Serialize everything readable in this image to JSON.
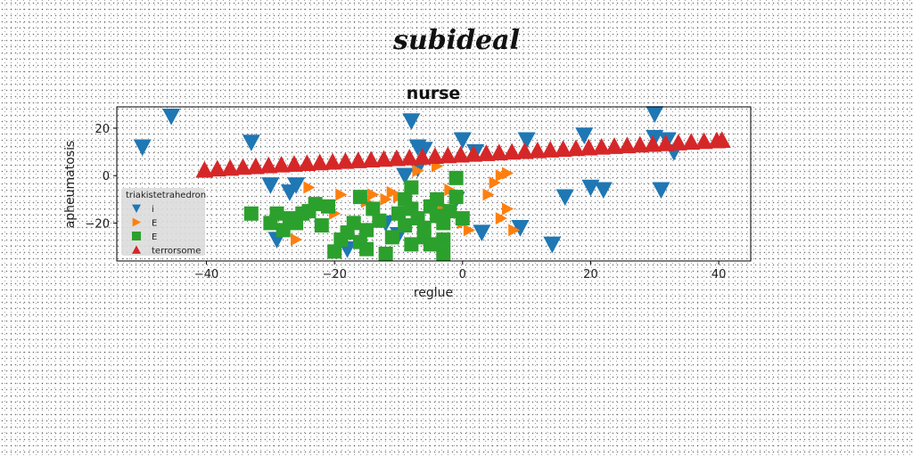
{
  "suptitle": "subideal",
  "chart_data": {
    "type": "scatter",
    "title": "nurse",
    "xlabel": "reglue",
    "ylabel": "apheumatosis",
    "xlim": [
      -54,
      45
    ],
    "ylim": [
      -36,
      29
    ],
    "xticks": [
      -40,
      -20,
      0,
      20,
      40
    ],
    "yticks": [
      20,
      0,
      -20
    ],
    "grid": false,
    "legend": {
      "title": "triakistetrahedron",
      "placement": "lower-left"
    },
    "series": [
      {
        "name": "i",
        "marker": "triangle-down",
        "color": "#1f77b4",
        "points": [
          [
            -45.5,
            25
          ],
          [
            -50,
            12
          ],
          [
            -33,
            14
          ],
          [
            -30,
            -4
          ],
          [
            -26,
            -4
          ],
          [
            -27,
            -7
          ],
          [
            -29,
            -27
          ],
          [
            -18,
            -31
          ],
          [
            -8,
            23
          ],
          [
            -7,
            12
          ],
          [
            -6,
            11
          ],
          [
            -7,
            3
          ],
          [
            -9,
            0
          ],
          [
            -12,
            -20
          ],
          [
            -10,
            -25
          ],
          [
            0,
            15
          ],
          [
            -1,
            -10
          ],
          [
            2,
            10
          ],
          [
            3,
            -24
          ],
          [
            9,
            -22
          ],
          [
            10,
            15
          ],
          [
            14,
            -29
          ],
          [
            16,
            -9
          ],
          [
            19,
            17
          ],
          [
            20,
            -5
          ],
          [
            22,
            -6
          ],
          [
            30,
            26
          ],
          [
            30,
            16
          ],
          [
            31,
            -6
          ],
          [
            32,
            15
          ],
          [
            33,
            10
          ]
        ]
      },
      {
        "name": "E",
        "marker": "triangle-right",
        "color": "#ff7f0e",
        "points": [
          [
            -26,
            -27
          ],
          [
            -24,
            -5
          ],
          [
            -20,
            -16
          ],
          [
            -19,
            -8
          ],
          [
            -19,
            -28
          ],
          [
            -15,
            -11
          ],
          [
            -14,
            -8
          ],
          [
            -12,
            -10
          ],
          [
            -11,
            -7
          ],
          [
            -10,
            -9
          ],
          [
            -8,
            -12
          ],
          [
            -7,
            2
          ],
          [
            -6,
            -26
          ],
          [
            -4,
            4
          ],
          [
            -3,
            -13
          ],
          [
            -2,
            -6
          ],
          [
            0,
            -20
          ],
          [
            1,
            -23
          ],
          [
            4,
            -8
          ],
          [
            5,
            -3
          ],
          [
            6,
            0
          ],
          [
            7,
            1
          ],
          [
            6,
            -18
          ],
          [
            7,
            -14
          ],
          [
            8,
            -23
          ]
        ]
      },
      {
        "name": "E",
        "marker": "square",
        "color": "#2ca02c",
        "points": [
          [
            -33,
            -16
          ],
          [
            -30,
            -20
          ],
          [
            -29,
            -16
          ],
          [
            -28,
            -23
          ],
          [
            -27,
            -18
          ],
          [
            -26,
            -20
          ],
          [
            -25,
            -16
          ],
          [
            -24,
            -15
          ],
          [
            -23,
            -12
          ],
          [
            -22,
            -21
          ],
          [
            -21,
            -13
          ],
          [
            -20,
            -32
          ],
          [
            -19,
            -27
          ],
          [
            -18,
            -24
          ],
          [
            -17,
            -20
          ],
          [
            -16,
            -28
          ],
          [
            -15,
            -23
          ],
          [
            -16,
            -9
          ],
          [
            -14,
            -14
          ],
          [
            -13,
            -19
          ],
          [
            -12,
            -33
          ],
          [
            -11,
            -26
          ],
          [
            -10,
            -16
          ],
          [
            -9,
            -21
          ],
          [
            -8,
            -14
          ],
          [
            -8,
            -5
          ],
          [
            -7,
            -18
          ],
          [
            -6,
            -26
          ],
          [
            -6,
            -22
          ],
          [
            -5,
            -13
          ],
          [
            -4,
            -17
          ],
          [
            -3,
            -20
          ],
          [
            -2,
            -15
          ],
          [
            -1,
            -9
          ],
          [
            -1,
            -1
          ],
          [
            0,
            -18
          ],
          [
            -3,
            -33
          ],
          [
            -8,
            -29
          ],
          [
            -5,
            -29
          ],
          [
            -15,
            -31
          ],
          [
            -9,
            -10
          ],
          [
            -4,
            -10
          ],
          [
            -3,
            -27
          ]
        ]
      },
      {
        "name": "terrorsome",
        "marker": "triangle-up",
        "color": "#d62728",
        "points": [
          [
            -40.3,
            2.4
          ],
          [
            -38.3,
            2.9
          ],
          [
            -36.3,
            3.2
          ],
          [
            -34.3,
            3.6
          ],
          [
            -32.3,
            3.9
          ],
          [
            -30.3,
            4.3
          ],
          [
            -28.3,
            4.6
          ],
          [
            -26.3,
            4.9
          ],
          [
            -24.3,
            5.2
          ],
          [
            -22.3,
            5.5
          ],
          [
            -20.3,
            5.8
          ],
          [
            -18.3,
            6.1
          ],
          [
            -16.3,
            6.4
          ],
          [
            -14.3,
            6.7
          ],
          [
            -12.3,
            7.0
          ],
          [
            -10.3,
            7.3
          ],
          [
            -8.3,
            7.6
          ],
          [
            -6.3,
            7.9
          ],
          [
            -4.3,
            8.2
          ],
          [
            -2.3,
            8.5
          ],
          [
            -0.3,
            8.8
          ],
          [
            1.7,
            9.1
          ],
          [
            3.7,
            9.4
          ],
          [
            5.7,
            9.7
          ],
          [
            7.7,
            10.0
          ],
          [
            9.7,
            10.3
          ],
          [
            11.7,
            10.6
          ],
          [
            13.7,
            10.9
          ],
          [
            15.7,
            11.2
          ],
          [
            17.7,
            11.5
          ],
          [
            19.7,
            11.8
          ],
          [
            21.7,
            12.1
          ],
          [
            23.7,
            12.4
          ],
          [
            25.7,
            12.7
          ],
          [
            27.7,
            13.0
          ],
          [
            29.7,
            13.3
          ],
          [
            31.7,
            13.6
          ],
          [
            33.7,
            13.9
          ],
          [
            35.7,
            14.2
          ],
          [
            37.7,
            14.5
          ],
          [
            39.7,
            14.8
          ],
          [
            40.5,
            15.0
          ]
        ]
      }
    ]
  }
}
